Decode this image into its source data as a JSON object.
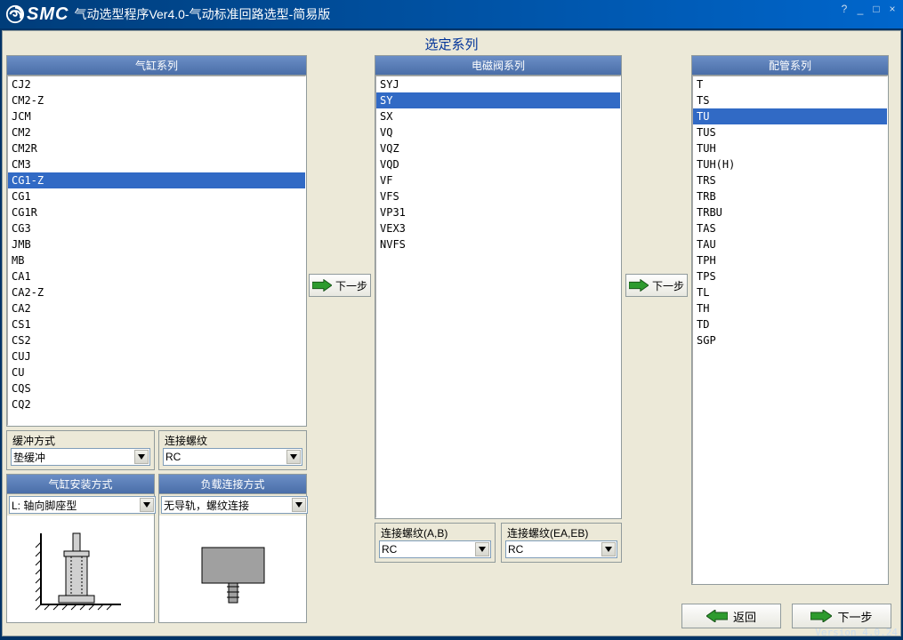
{
  "window": {
    "title": "气动选型程序Ver4.0-气动标准回路选型-简易版",
    "logo_text": "SMC"
  },
  "section_title": "选定系列",
  "columns": {
    "cylinder": {
      "header": "气缸系列",
      "items": [
        "CJ2",
        "CM2-Z",
        "JCM",
        "CM2",
        "CM2R",
        "CM3",
        "CG1-Z",
        "CG1",
        "CG1R",
        "CG3",
        "JMB",
        "MB",
        "CA1",
        "CA2-Z",
        "CA2",
        "CS1",
        "CS2",
        "CUJ",
        "CU",
        "CQS",
        "CQ2"
      ],
      "selected_index": 6
    },
    "valve": {
      "header": "电磁阀系列",
      "items": [
        "SYJ",
        "SY",
        "SX",
        "VQ",
        "VQZ",
        "VQD",
        "VF",
        "VFS",
        "VP31",
        "VEX3",
        "NVFS"
      ],
      "selected_index": 1
    },
    "piping": {
      "header": "配管系列",
      "items": [
        "T",
        "TS",
        "TU",
        "TUS",
        "TUH",
        "TUH(H)",
        "TRS",
        "TRB",
        "TRBU",
        "TAS",
        "TAU",
        "TPH",
        "TPS",
        "TL",
        "TH",
        "TD",
        "SGP"
      ],
      "selected_index": 2
    }
  },
  "options": {
    "cushion": {
      "label": "缓冲方式",
      "value": "垫缓冲"
    },
    "thread1": {
      "label": "连接螺纹",
      "value": "RC"
    },
    "mount": {
      "header": "气缸安装方式",
      "value": "L: 轴向脚座型"
    },
    "load": {
      "header": "负载连接方式",
      "value": "无导轨，螺纹连接"
    },
    "valve_thread_ab": {
      "label": "连接螺纹(A,B)",
      "value": "RC"
    },
    "valve_thread_eaeb": {
      "label": "连接螺纹(EA,EB)",
      "value": "RC"
    }
  },
  "buttons": {
    "next_step": "下一步",
    "back": "返回"
  },
  "colors": {
    "titlebar_start": "#003d7a",
    "titlebar_end": "#0066cc",
    "panel_bg": "#ece9d8",
    "panel_head_start": "#6b8ec6",
    "panel_head_end": "#4a6ea8",
    "selection": "#316ac5",
    "border": "#919b9c",
    "arrow_green": "#2e9b2e",
    "section_title": "#003399"
  },
  "version": "Version 4.0.24"
}
